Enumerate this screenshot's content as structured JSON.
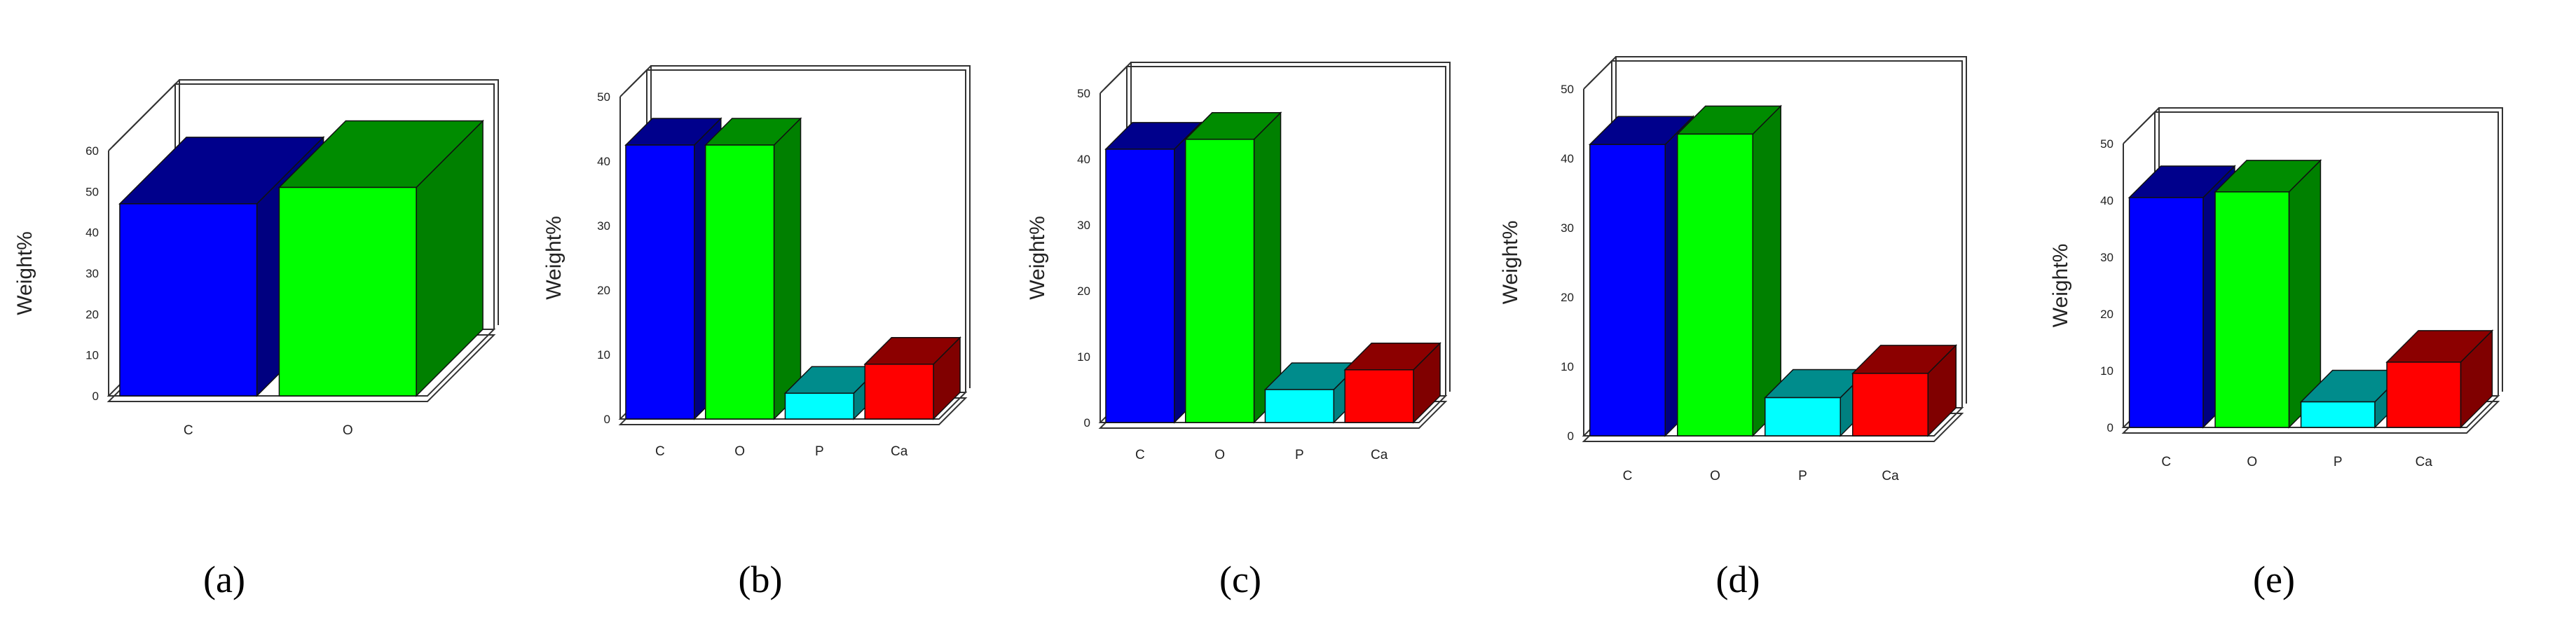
{
  "chart_data": [
    {
      "type": "bar",
      "panel_label": "(a)",
      "ylabel": "Weight%",
      "ylim": [
        0,
        60
      ],
      "yticks": [
        "0",
        "10",
        "20",
        "30",
        "40",
        "50",
        "60"
      ],
      "categories": [
        "C",
        "O"
      ],
      "values": [
        47,
        51
      ],
      "colors": [
        "#0000ff",
        "#00ff00"
      ],
      "projection": "3d",
      "grid": false
    },
    {
      "type": "bar",
      "panel_label": "(b)",
      "ylabel": "Weight%",
      "ylim": [
        0,
        50
      ],
      "yticks": [
        "0",
        "10",
        "20",
        "30",
        "40",
        "50"
      ],
      "categories": [
        "C",
        "O",
        "P",
        "Ca"
      ],
      "values": [
        42.5,
        42.5,
        4,
        8.5
      ],
      "colors": [
        "#0000ff",
        "#00ff00",
        "#00ffff",
        "#ff0000"
      ],
      "projection": "3d",
      "grid": false
    },
    {
      "type": "bar",
      "panel_label": "(c)",
      "ylabel": "Weight%",
      "ylim": [
        0,
        50
      ],
      "yticks": [
        "0",
        "10",
        "20",
        "30",
        "40",
        "50"
      ],
      "categories": [
        "C",
        "O",
        "P",
        "Ca"
      ],
      "values": [
        41.5,
        43,
        5,
        8
      ],
      "colors": [
        "#0000ff",
        "#00ff00",
        "#00ffff",
        "#ff0000"
      ],
      "projection": "3d",
      "grid": false
    },
    {
      "type": "bar",
      "panel_label": "(d)",
      "ylabel": "Weight%",
      "ylim": [
        0,
        50
      ],
      "yticks": [
        "0",
        "10",
        "20",
        "30",
        "40",
        "50"
      ],
      "categories": [
        "C",
        "O",
        "P",
        "Ca"
      ],
      "values": [
        42,
        43.5,
        5.5,
        9
      ],
      "colors": [
        "#0000ff",
        "#00ff00",
        "#00ffff",
        "#ff0000"
      ],
      "projection": "3d",
      "grid": false
    },
    {
      "type": "bar",
      "panel_label": "(e)",
      "ylabel": "Weight%",
      "ylim": [
        0,
        50
      ],
      "yticks": [
        "0",
        "10",
        "20",
        "30",
        "40",
        "50"
      ],
      "categories": [
        "C",
        "O",
        "P",
        "Ca"
      ],
      "values": [
        40.5,
        41.5,
        4.5,
        11.5
      ],
      "colors": [
        "#0000ff",
        "#00ff00",
        "#00ffff",
        "#ff0000"
      ],
      "projection": "3d",
      "grid": false
    }
  ]
}
